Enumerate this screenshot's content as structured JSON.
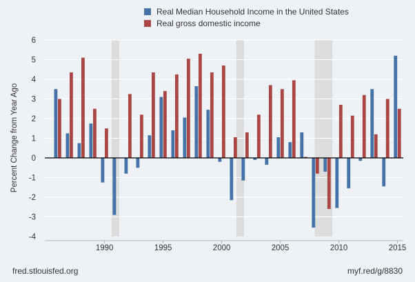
{
  "chart_data": {
    "type": "bar",
    "title": "",
    "xlabel": "",
    "ylabel": "Percent Change from Year Ago",
    "ylim": [
      -4,
      6
    ],
    "yticks": [
      6,
      5,
      4,
      3,
      2,
      1,
      0,
      -1,
      -2,
      -3,
      -4
    ],
    "xticks": [
      1990,
      1995,
      2000,
      2005,
      2010,
      2015
    ],
    "xlim": [
      1984.9,
      2015.5
    ],
    "grid": true,
    "legend_position": "top",
    "recessions": [
      [
        1990.6,
        1991.25
      ],
      [
        2001.25,
        2001.9
      ],
      [
        2007.95,
        2009.45
      ]
    ],
    "categories": [
      1985,
      1986,
      1987,
      1988,
      1989,
      1990,
      1991,
      1992,
      1993,
      1994,
      1995,
      1996,
      1997,
      1998,
      1999,
      2000,
      2001,
      2002,
      2003,
      2004,
      2005,
      2006,
      2007,
      2008,
      2009,
      2010,
      2011,
      2012,
      2013,
      2014,
      2015
    ],
    "series": [
      {
        "name": "Real Median Household Income in the United States",
        "color": "#4572a7",
        "values": [
          null,
          3.5,
          1.25,
          0.75,
          1.75,
          -1.25,
          -2.9,
          -0.8,
          -0.5,
          1.15,
          3.1,
          1.4,
          2.05,
          3.65,
          2.45,
          -0.2,
          -2.15,
          -1.15,
          -0.1,
          -0.35,
          1.05,
          0.8,
          1.3,
          -3.55,
          -0.7,
          -2.55,
          -1.55,
          -0.15,
          3.5,
          -1.45,
          5.2
        ]
      },
      {
        "name": "Real gross domestic income",
        "color": "#aa4643",
        "values": [
          null,
          3.0,
          4.35,
          5.1,
          2.5,
          1.5,
          0.0,
          3.25,
          2.2,
          4.35,
          3.4,
          4.25,
          5.05,
          5.3,
          4.35,
          4.7,
          1.05,
          1.3,
          2.2,
          3.7,
          3.5,
          3.95,
          0.05,
          -0.8,
          -2.6,
          2.7,
          2.15,
          3.2,
          1.2,
          3.0,
          2.5
        ]
      }
    ]
  },
  "footer": {
    "source": "fred.stlouisfed.org",
    "link": "myf.red/g/8830"
  }
}
